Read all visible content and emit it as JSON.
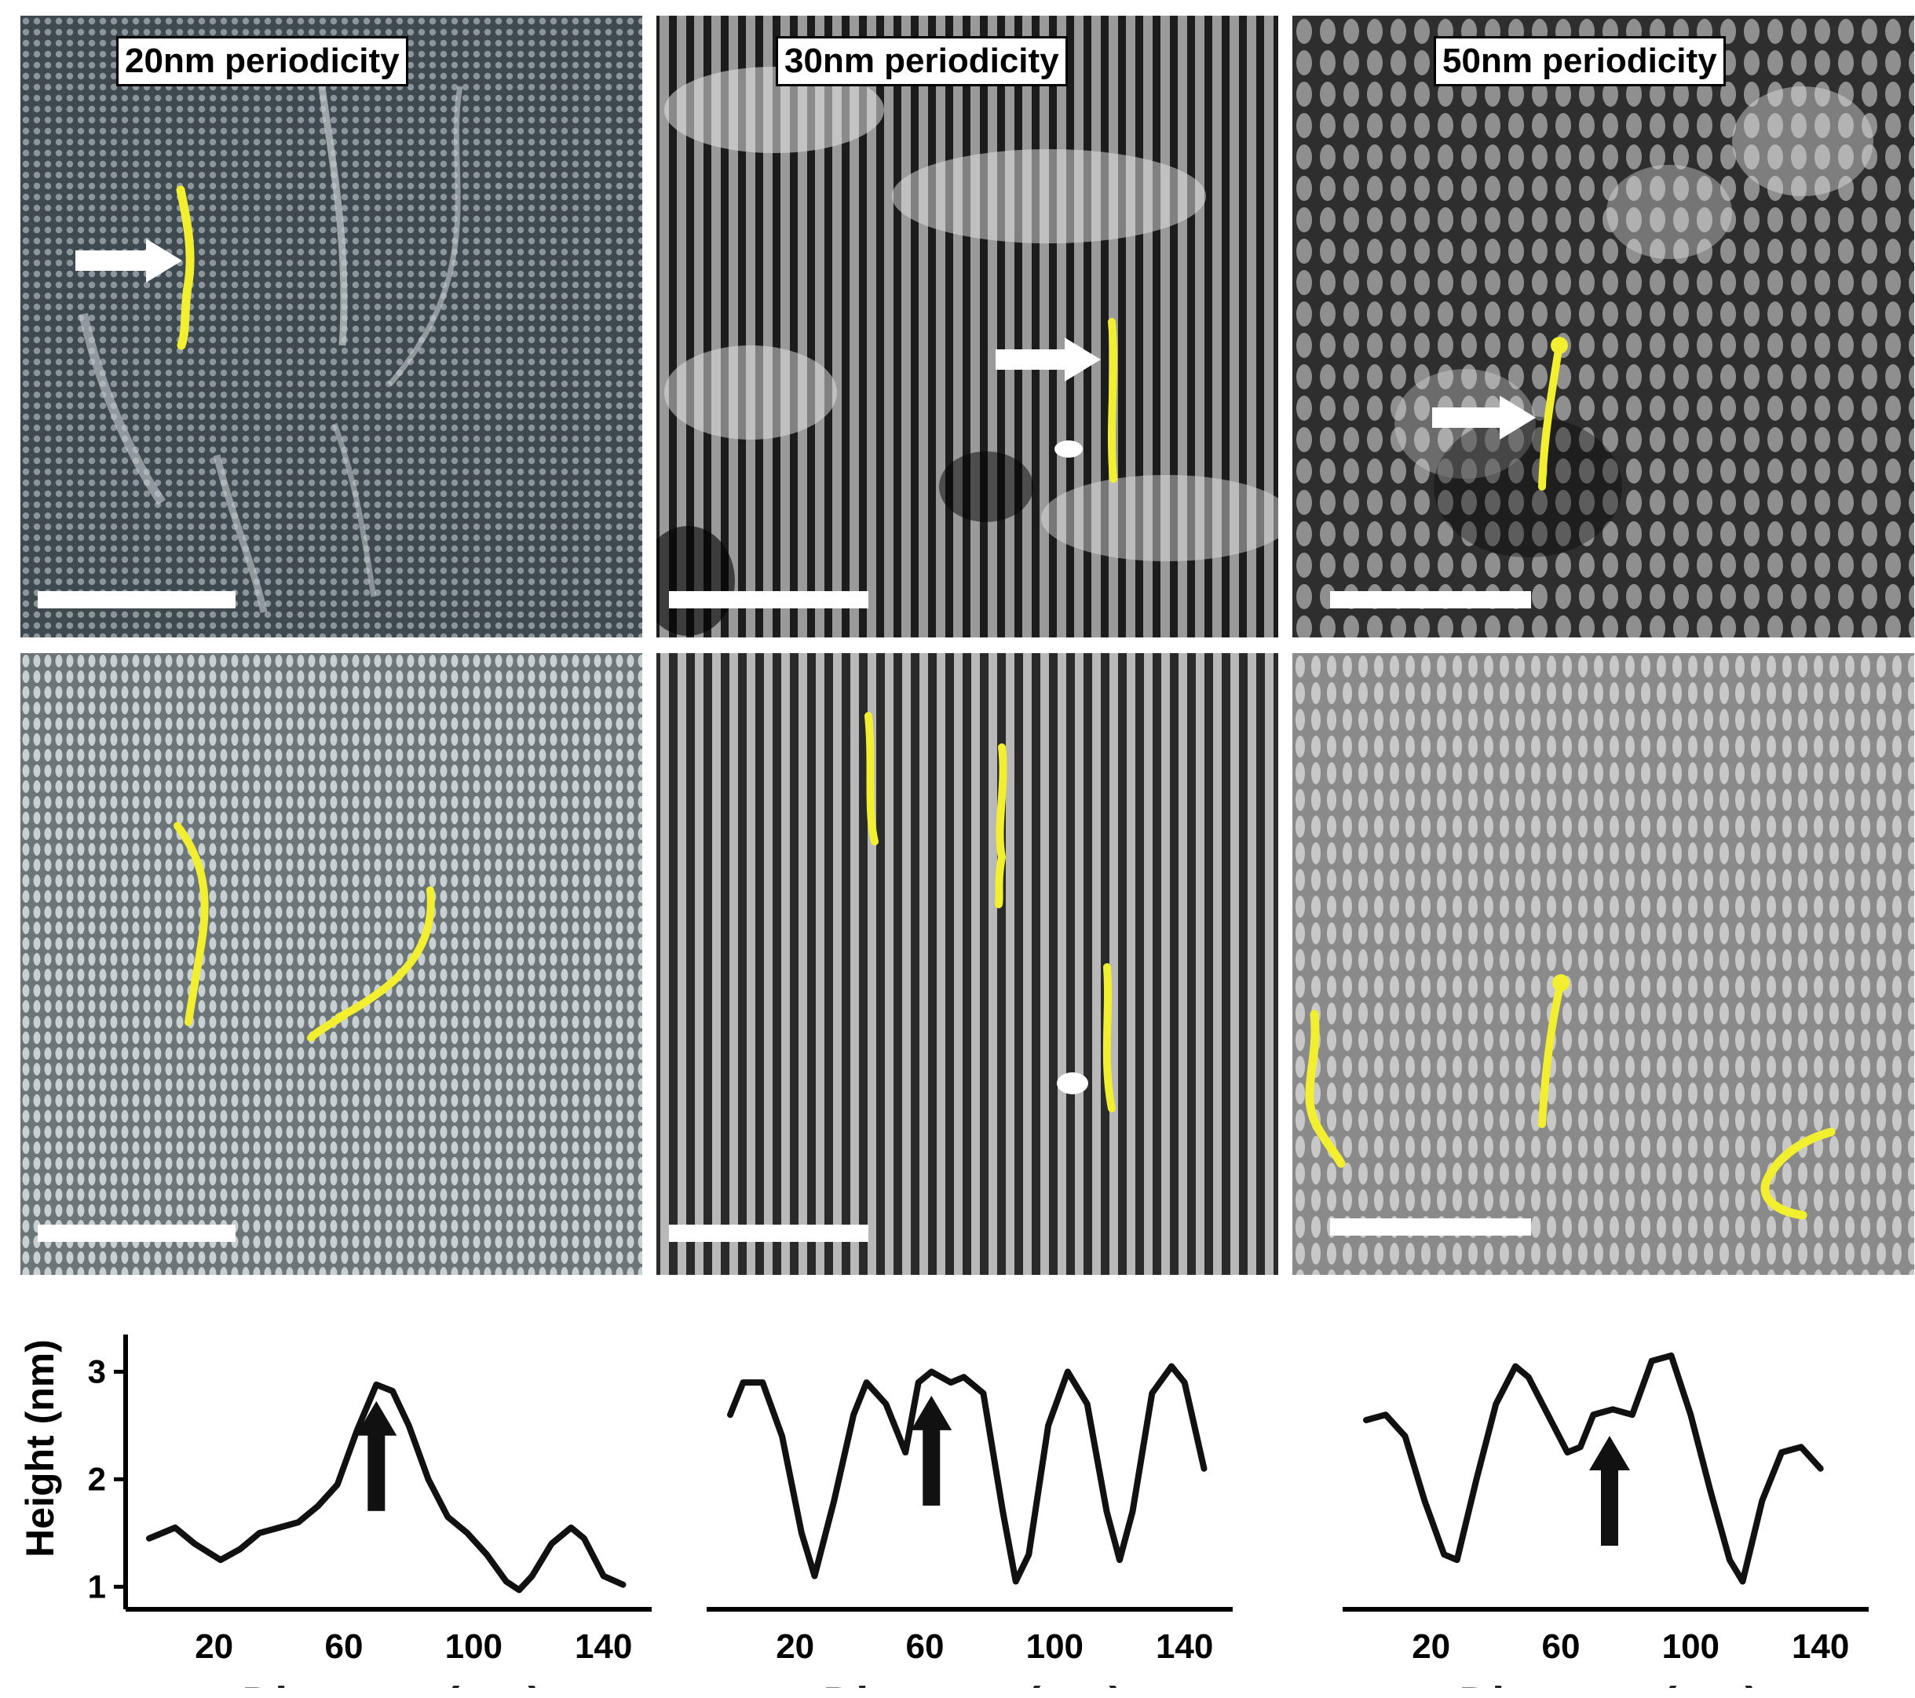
{
  "panels": {
    "p20": {
      "label": "20nm periodicity"
    },
    "p30": {
      "label": "30nm periodicity"
    },
    "p50": {
      "label": "50nm periodicity"
    }
  },
  "plots": {
    "ylabel": "Height (nm)",
    "xlabel": "Distance (nm)"
  },
  "chart_data": [
    {
      "type": "line",
      "title": "",
      "xlabel": "Distance (nm)",
      "ylabel": "Height (nm)",
      "xticks": [
        "20",
        "60",
        "100",
        "140"
      ],
      "yticks": [
        "1",
        "2",
        "3"
      ],
      "xlim": [
        0,
        150
      ],
      "ylim": [
        0.9,
        3.2
      ],
      "x": [
        0,
        8,
        14,
        22,
        28,
        34,
        40,
        46,
        52,
        58,
        64,
        70,
        75,
        80,
        86,
        92,
        98,
        104,
        110,
        114,
        118,
        124,
        130,
        134,
        140,
        146
      ],
      "values": [
        1.45,
        1.55,
        1.4,
        1.25,
        1.35,
        1.5,
        1.55,
        1.6,
        1.75,
        1.95,
        2.45,
        2.88,
        2.82,
        2.5,
        2.0,
        1.65,
        1.5,
        1.3,
        1.05,
        0.97,
        1.1,
        1.4,
        1.55,
        1.45,
        1.1,
        1.02
      ],
      "annotation": "arrow at x=70"
    },
    {
      "type": "line",
      "title": "",
      "xlabel": "Distance (nm)",
      "ylabel": "",
      "xticks": [
        "20",
        "60",
        "100",
        "140"
      ],
      "xlim": [
        0,
        150
      ],
      "ylim": [
        0.9,
        3.2
      ],
      "x": [
        0,
        4,
        10,
        16,
        22,
        26,
        32,
        38,
        42,
        48,
        54,
        58,
        62,
        68,
        72,
        78,
        84,
        88,
        92,
        98,
        104,
        110,
        116,
        120,
        124,
        130,
        136,
        140,
        146
      ],
      "values": [
        2.6,
        2.9,
        2.9,
        2.4,
        1.5,
        1.1,
        1.8,
        2.6,
        2.9,
        2.7,
        2.25,
        2.9,
        3.0,
        2.9,
        2.95,
        2.8,
        1.7,
        1.05,
        1.3,
        2.5,
        3.0,
        2.7,
        1.7,
        1.25,
        1.7,
        2.8,
        3.05,
        2.9,
        2.1
      ],
      "annotation": "arrow at x=62"
    },
    {
      "type": "line",
      "title": "",
      "xlabel": "Distance (nm)",
      "ylabel": "",
      "xticks": [
        "20",
        "60",
        "100",
        "140"
      ],
      "xlim": [
        0,
        150
      ],
      "ylim": [
        0.9,
        3.2
      ],
      "x": [
        0,
        6,
        12,
        18,
        24,
        28,
        34,
        40,
        46,
        50,
        56,
        62,
        66,
        70,
        76,
        82,
        88,
        94,
        100,
        106,
        112,
        116,
        122,
        128,
        134,
        140
      ],
      "values": [
        2.55,
        2.6,
        2.4,
        1.8,
        1.3,
        1.25,
        2.0,
        2.7,
        3.05,
        2.95,
        2.6,
        2.25,
        2.3,
        2.6,
        2.65,
        2.6,
        3.1,
        3.15,
        2.6,
        1.9,
        1.25,
        1.05,
        1.8,
        2.25,
        2.3,
        2.1
      ],
      "annotation": "arrow at x=75"
    }
  ]
}
